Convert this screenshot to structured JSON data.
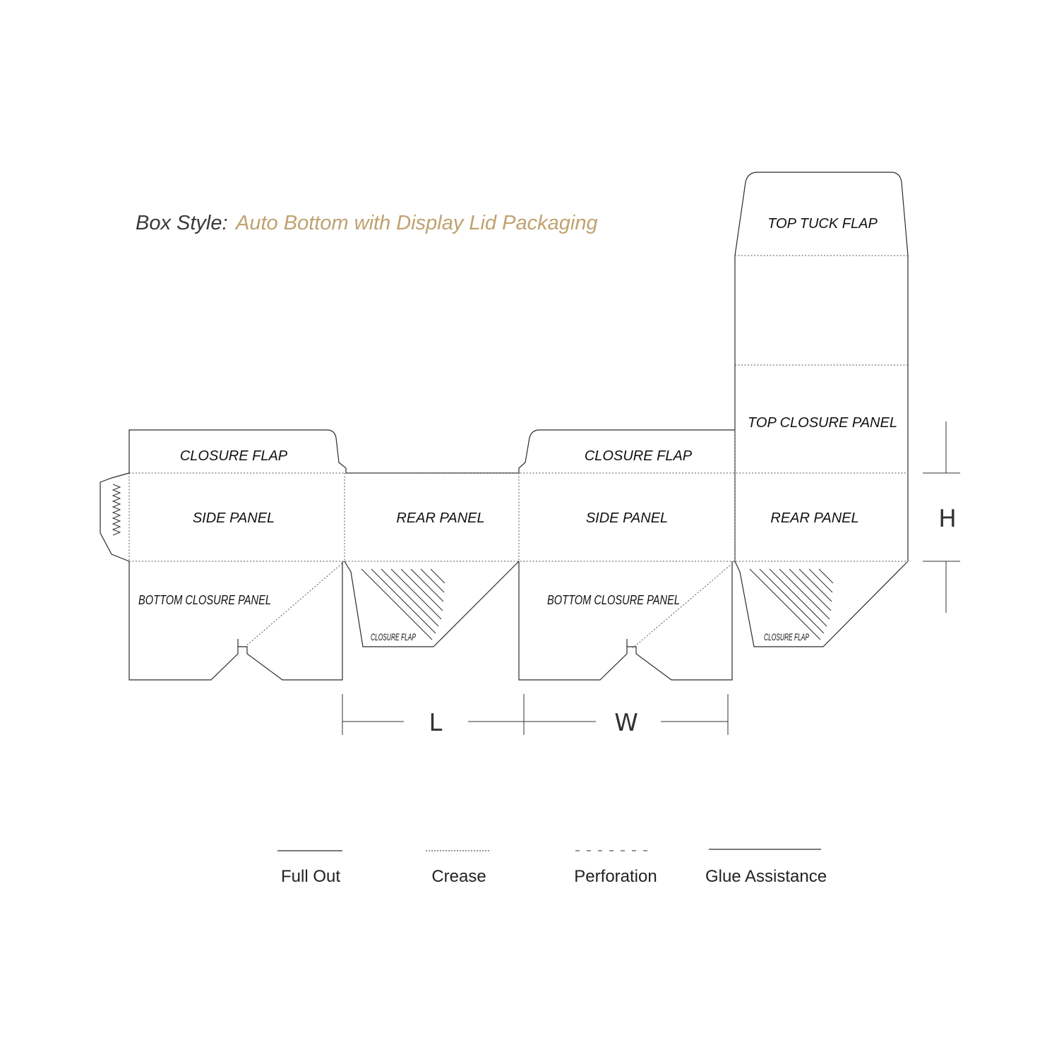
{
  "title": {
    "prefix": "Box Style:",
    "style_name": "Auto Bottom with Display Lid Packaging",
    "accent_color": "#bfa270"
  },
  "panels": {
    "top_tuck_flap": "TOP TUCK FLAP",
    "top_closure_panel": "TOP CLOSURE PANEL",
    "closure_flap_left": "CLOSURE FLAP",
    "closure_flap_mid": "CLOSURE FLAP",
    "side_panel_left": "SIDE PANEL",
    "rear_panel_left": "REAR PANEL",
    "side_panel_mid": "SIDE PANEL",
    "rear_panel_right": "REAR PANEL",
    "bottom_closure_panel_left": "BOTTOM CLOSURE PANEL",
    "bottom_closure_panel_mid": "BOTTOM CLOSURE PANEL",
    "closure_flap_small_left": "CLOSURE FLAP",
    "closure_flap_small_right": "CLOSURE FLAP"
  },
  "dimensions": {
    "length": "L",
    "width": "W",
    "height": "H"
  },
  "legend": {
    "full_out": "Full Out",
    "crease": "Crease",
    "perforation": "Perforation",
    "glue_assistance": "Glue Assistance"
  }
}
